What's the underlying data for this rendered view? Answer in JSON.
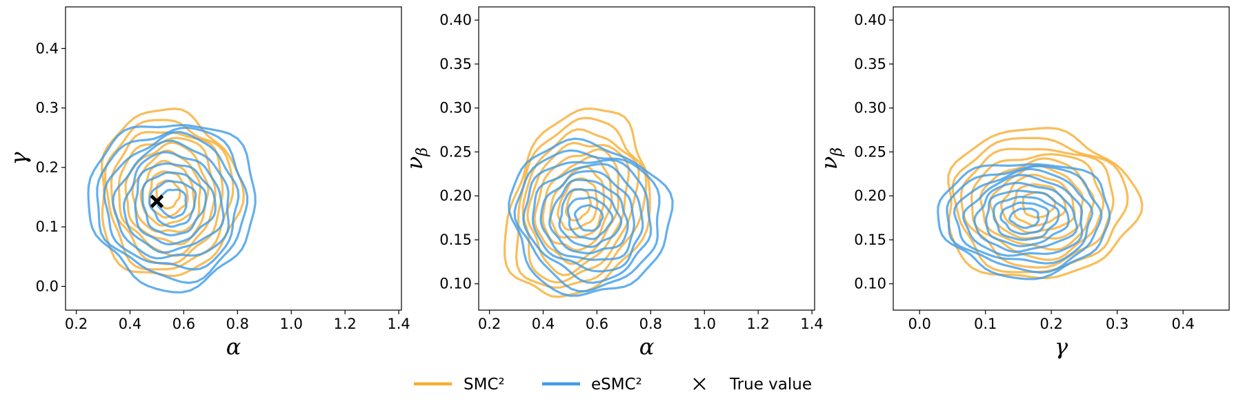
{
  "colors": {
    "smc2": "#f8ad2f",
    "esmc2": "#3d9be9",
    "true_value": "#000000"
  },
  "legend": {
    "items": [
      {
        "label": "SMC²",
        "color": "#f8ad2f",
        "marker": "line"
      },
      {
        "label": "eSMC²",
        "color": "#3d9be9",
        "marker": "line"
      },
      {
        "label": "True value",
        "color": "#000000",
        "marker": "x"
      }
    ]
  },
  "chart_data": [
    {
      "type": "contour",
      "xlabel": "α",
      "ylabel": "γ",
      "xlim": [
        0.16,
        1.41
      ],
      "ylim": [
        -0.04,
        0.47
      ],
      "xticks": [
        0.2,
        0.4,
        0.6,
        0.8,
        1.0,
        1.2,
        1.4
      ],
      "xtick_labels": [
        "0.2",
        "0.4",
        "0.6",
        "0.8",
        "1.0",
        "1.2",
        "1.4"
      ],
      "yticks": [
        0.0,
        0.1,
        0.2,
        0.3,
        0.4
      ],
      "ytick_labels": [
        "0.0",
        "0.1",
        "0.2",
        "0.3",
        "0.4"
      ],
      "grid": false,
      "series": [
        {
          "name": "SMC²",
          "center": [
            0.54,
            0.155
          ],
          "outer_radius": [
            0.26,
            0.14
          ],
          "levels": 9
        },
        {
          "name": "eSMC²",
          "center": [
            0.56,
            0.14
          ],
          "outer_radius": [
            0.31,
            0.14
          ],
          "levels": 9
        }
      ],
      "true_value": [
        0.5,
        0.143
      ]
    },
    {
      "type": "contour",
      "xlabel": "α",
      "ylabel": "ν_β",
      "xlim": [
        0.16,
        1.41
      ],
      "ylim": [
        0.07,
        0.415
      ],
      "xticks": [
        0.2,
        0.4,
        0.6,
        0.8,
        1.0,
        1.2,
        1.4
      ],
      "xtick_labels": [
        "0.2",
        "0.4",
        "0.6",
        "0.8",
        "1.0",
        "1.2",
        "1.4"
      ],
      "yticks": [
        0.1,
        0.15,
        0.2,
        0.25,
        0.3,
        0.35,
        0.4
      ],
      "ytick_labels": [
        "0.10",
        "0.15",
        "0.20",
        "0.25",
        "0.30",
        "0.35",
        "0.40"
      ],
      "grid": false,
      "series": [
        {
          "name": "SMC²",
          "center": [
            0.53,
            0.19
          ],
          "outer_radius": [
            0.25,
            0.11
          ],
          "tilt": 0.35,
          "levels": 9
        },
        {
          "name": "eSMC²",
          "center": [
            0.57,
            0.175
          ],
          "outer_radius": [
            0.3,
            0.085
          ],
          "tilt": 0.45,
          "levels": 9
        }
      ]
    },
    {
      "type": "contour",
      "xlabel": "γ",
      "ylabel": "ν_β",
      "xlim": [
        -0.04,
        0.47
      ],
      "ylim": [
        0.07,
        0.415
      ],
      "xticks": [
        0.0,
        0.1,
        0.2,
        0.3,
        0.4
      ],
      "xtick_labels": [
        "0.0",
        "0.1",
        "0.2",
        "0.3",
        "0.4"
      ],
      "yticks": [
        0.1,
        0.15,
        0.2,
        0.25,
        0.3,
        0.35,
        0.4
      ],
      "ytick_labels": [
        "0.10",
        "0.15",
        "0.20",
        "0.25",
        "0.30",
        "0.35",
        "0.40"
      ],
      "grid": false,
      "series": [
        {
          "name": "SMC²",
          "center": [
            0.18,
            0.19
          ],
          "outer_radius": [
            0.145,
            0.085
          ],
          "levels": 9
        },
        {
          "name": "eSMC²",
          "center": [
            0.16,
            0.175
          ],
          "outer_radius": [
            0.13,
            0.065
          ],
          "levels": 9
        }
      ]
    }
  ]
}
